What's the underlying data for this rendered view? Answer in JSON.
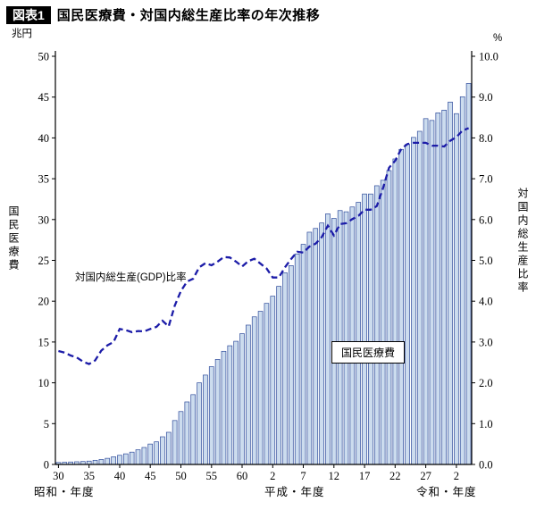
{
  "header": {
    "tag": "図表1",
    "title": "国民医療費・対国内総生産比率の年次推移"
  },
  "colors": {
    "bar_fill": "#ccdcee",
    "bar_stroke": "#2e4b9b",
    "line": "#1c1ca8",
    "axis": "#000000"
  },
  "chart_data": {
    "type": "bar",
    "title": "国民医療費・対国内総生産比率の年次推移",
    "left_axis": {
      "unit": "兆円",
      "label": "国民医療費",
      "min": 0,
      "max": 50,
      "step": 5
    },
    "right_axis": {
      "unit": "%",
      "label": "対国内総生産比率",
      "min": 0,
      "max": 10,
      "step": 1
    },
    "era_labels": [
      "昭和・年度",
      "平成・年度",
      "令和・年度"
    ],
    "annotations": {
      "line_label": "対国内総生産(GDP)比率",
      "bar_label": "国民医療費"
    },
    "x_ticks": [
      {
        "label": "30",
        "year": 1955
      },
      {
        "label": "35",
        "year": 1960
      },
      {
        "label": "40",
        "year": 1965
      },
      {
        "label": "45",
        "year": 1970
      },
      {
        "label": "50",
        "year": 1975
      },
      {
        "label": "55",
        "year": 1980
      },
      {
        "label": "60",
        "year": 1985
      },
      {
        "label": "2",
        "year": 1990
      },
      {
        "label": "7",
        "year": 1995
      },
      {
        "label": "12",
        "year": 2000
      },
      {
        "label": "17",
        "year": 2005
      },
      {
        "label": "22",
        "year": 2010
      },
      {
        "label": "27",
        "year": 2015
      },
      {
        "label": "2",
        "year": 2020
      }
    ],
    "years": [
      1955,
      1956,
      1957,
      1958,
      1959,
      1960,
      1961,
      1962,
      1963,
      1964,
      1965,
      1966,
      1967,
      1968,
      1969,
      1970,
      1971,
      1972,
      1973,
      1974,
      1975,
      1976,
      1977,
      1978,
      1979,
      1980,
      1981,
      1982,
      1983,
      1984,
      1985,
      1986,
      1987,
      1988,
      1989,
      1990,
      1991,
      1992,
      1993,
      1994,
      1995,
      1996,
      1997,
      1998,
      1999,
      2000,
      2001,
      2002,
      2003,
      2004,
      2005,
      2006,
      2007,
      2008,
      2009,
      2010,
      2011,
      2012,
      2013,
      2014,
      2015,
      2016,
      2017,
      2018,
      2019,
      2020,
      2021,
      2022
    ],
    "series": [
      {
        "name": "国民医療費",
        "type": "bar",
        "axis": "left",
        "values": [
          0.24,
          0.27,
          0.3,
          0.33,
          0.36,
          0.41,
          0.51,
          0.61,
          0.75,
          0.94,
          1.12,
          1.3,
          1.51,
          1.8,
          2.08,
          2.5,
          2.77,
          3.39,
          3.94,
          5.38,
          6.48,
          7.66,
          8.55,
          10.0,
          10.95,
          11.98,
          12.87,
          13.86,
          14.54,
          15.09,
          16.02,
          17.07,
          18.08,
          18.76,
          19.73,
          20.61,
          21.82,
          23.48,
          24.36,
          25.79,
          26.96,
          28.45,
          28.91,
          29.58,
          30.7,
          30.14,
          31.1,
          30.95,
          31.54,
          32.11,
          33.13,
          33.13,
          34.14,
          34.81,
          36.0,
          37.42,
          38.59,
          39.21,
          40.06,
          40.81,
          42.36,
          42.14,
          43.07,
          43.4,
          44.39,
          42.97,
          45.04,
          46.67
        ]
      },
      {
        "name": "対国内総生産(GDP)比率",
        "type": "line",
        "axis": "right",
        "values": [
          2.78,
          2.74,
          2.67,
          2.62,
          2.52,
          2.46,
          2.55,
          2.79,
          2.92,
          3.0,
          3.32,
          3.29,
          3.24,
          3.27,
          3.26,
          3.32,
          3.37,
          3.52,
          3.38,
          3.89,
          4.25,
          4.48,
          4.55,
          4.83,
          4.93,
          4.88,
          4.97,
          5.08,
          5.07,
          4.97,
          4.85,
          4.98,
          5.04,
          4.92,
          4.8,
          4.58,
          4.58,
          4.83,
          5.03,
          5.21,
          5.19,
          5.34,
          5.41,
          5.57,
          5.85,
          5.61,
          5.89,
          5.91,
          6.01,
          6.09,
          6.24,
          6.24,
          6.33,
          6.76,
          7.27,
          7.44,
          7.73,
          7.85,
          7.88,
          7.88,
          7.88,
          7.81,
          7.81,
          7.79,
          7.93,
          8.02,
          8.18,
          8.24
        ]
      }
    ]
  }
}
